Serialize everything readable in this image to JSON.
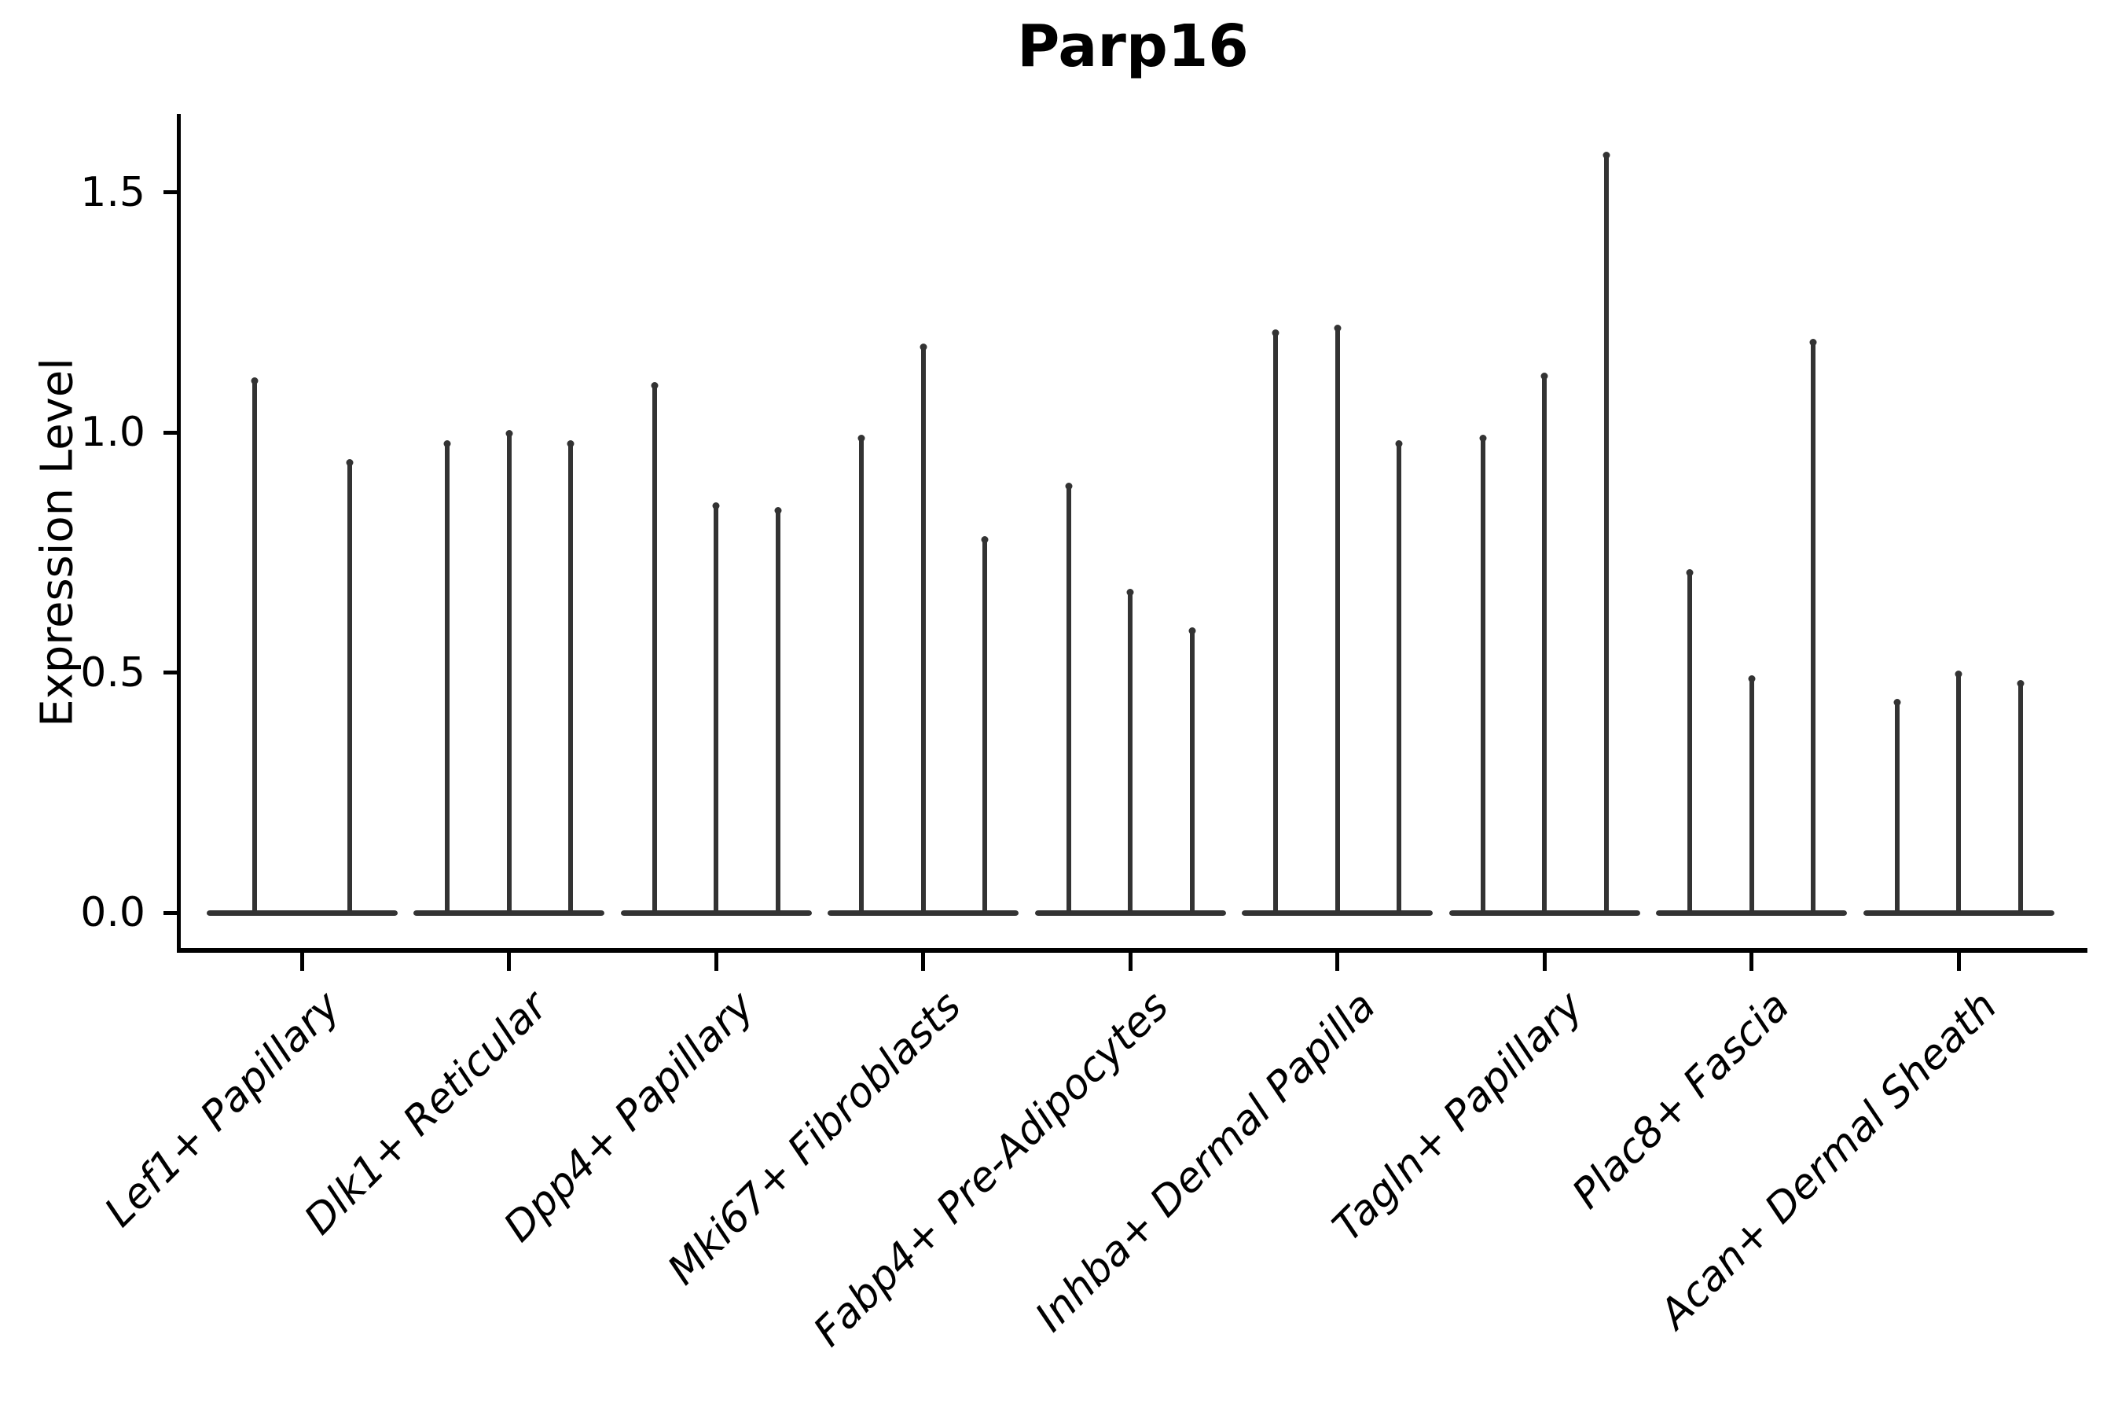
{
  "chart_data": {
    "type": "violin",
    "title": "Parp16",
    "xlabel": "",
    "ylabel": "Expression Level",
    "yticks": [
      0.0,
      0.5,
      1.0,
      1.5
    ],
    "ytick_labels": [
      "0.0",
      "0.5",
      "1.0",
      "1.5"
    ],
    "ylim": [
      -0.08,
      1.66
    ],
    "grid": false,
    "legend": "none",
    "description": "Stacked-violin style expression plot; each category shows 2-3 very thin violins: density is concentrated at expression 0 (flat dark bar on the baseline) with a thin spike rising to the maximum expression value listed below.",
    "categories": [
      "Lef1+ Papillary",
      "Dlk1+ Reticular",
      "Dpp4+ Papillary",
      "Mki67+ Fibroblasts",
      "Fabp4+ Pre-Adipocytes",
      "Inhba+ Dermal Papilla",
      "Tagln+ Papillary",
      "Plac8+ Fascia",
      "Acan+ Dermal Sheath"
    ],
    "violin_max_values": [
      [
        1.11,
        null,
        0.94
      ],
      [
        0.98,
        1.0,
        0.98
      ],
      [
        1.1,
        0.85,
        0.84
      ],
      [
        0.99,
        1.18,
        0.78
      ],
      [
        0.89,
        0.67,
        0.59
      ],
      [
        1.21,
        1.22,
        0.98
      ],
      [
        0.99,
        1.12,
        1.58
      ],
      [
        0.71,
        0.49,
        1.19
      ],
      [
        0.44,
        0.5,
        0.48
      ]
    ]
  },
  "colors": {
    "violin": "#333333",
    "axis": "#000000",
    "background": "#ffffff"
  }
}
